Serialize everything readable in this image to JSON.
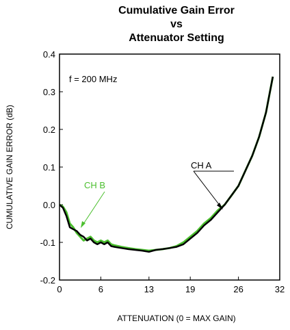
{
  "chart_data": {
    "type": "line",
    "title_lines": [
      "Cumulative Gain Error",
      "vs",
      "Attenuator Setting"
    ],
    "xlabel": "ATTENUATION  (0 = MAX GAIN)",
    "ylabel": "CUMULATIVE GAIN ERROR (dB)",
    "xlim": [
      0,
      32
    ],
    "ylim": [
      -0.2,
      0.4
    ],
    "x_ticks": [
      0,
      6,
      13,
      19,
      26,
      32
    ],
    "y_ticks": [
      -0.2,
      -0.1,
      0.0,
      0.1,
      0.2,
      0.3,
      0.4
    ],
    "y_tick_labels": [
      "-0.2",
      "-0.1",
      "0.0",
      "0.1",
      "0.2",
      "0.3",
      "0.4"
    ],
    "grid": false,
    "annotations": {
      "freq": "f = 200 MHz",
      "ch_a": "CH A",
      "ch_b": "CH B"
    },
    "series": [
      {
        "name": "CH B",
        "color": "#4bbf2e",
        "x": [
          0,
          0.5,
          1,
          1.5,
          2,
          2.5,
          3,
          3.5,
          4,
          4.5,
          5,
          5.5,
          6,
          6.5,
          7,
          7.5,
          8,
          9,
          10,
          11,
          12,
          13,
          14,
          15,
          16,
          17,
          18,
          19,
          20,
          21,
          22,
          23,
          24,
          25,
          26,
          27,
          28,
          29,
          30,
          31
        ],
        "y": [
          0.0,
          -0.005,
          -0.02,
          -0.05,
          -0.06,
          -0.075,
          -0.085,
          -0.095,
          -0.09,
          -0.085,
          -0.095,
          -0.1,
          -0.095,
          -0.1,
          -0.095,
          -0.105,
          -0.108,
          -0.112,
          -0.115,
          -0.118,
          -0.12,
          -0.122,
          -0.12,
          -0.118,
          -0.115,
          -0.11,
          -0.1,
          -0.085,
          -0.07,
          -0.05,
          -0.035,
          -0.015,
          0.0,
          0.025,
          0.05,
          0.09,
          0.13,
          0.18,
          0.245,
          0.34
        ]
      },
      {
        "name": "CH A",
        "color": "#000000",
        "x": [
          0,
          0.5,
          1,
          1.5,
          2,
          2.5,
          3,
          3.5,
          4,
          4.5,
          5,
          5.5,
          6,
          6.5,
          7,
          7.5,
          8,
          9,
          10,
          11,
          12,
          13,
          14,
          15,
          16,
          17,
          18,
          19,
          20,
          21,
          22,
          23,
          24,
          25,
          26,
          27,
          28,
          29,
          30,
          31
        ],
        "y": [
          0.0,
          -0.008,
          -0.03,
          -0.06,
          -0.065,
          -0.07,
          -0.08,
          -0.085,
          -0.095,
          -0.09,
          -0.1,
          -0.105,
          -0.1,
          -0.105,
          -0.1,
          -0.11,
          -0.112,
          -0.115,
          -0.118,
          -0.12,
          -0.122,
          -0.125,
          -0.12,
          -0.118,
          -0.115,
          -0.112,
          -0.105,
          -0.09,
          -0.075,
          -0.055,
          -0.04,
          -0.02,
          0.0,
          0.025,
          0.05,
          0.09,
          0.13,
          0.18,
          0.245,
          0.34
        ]
      }
    ]
  }
}
